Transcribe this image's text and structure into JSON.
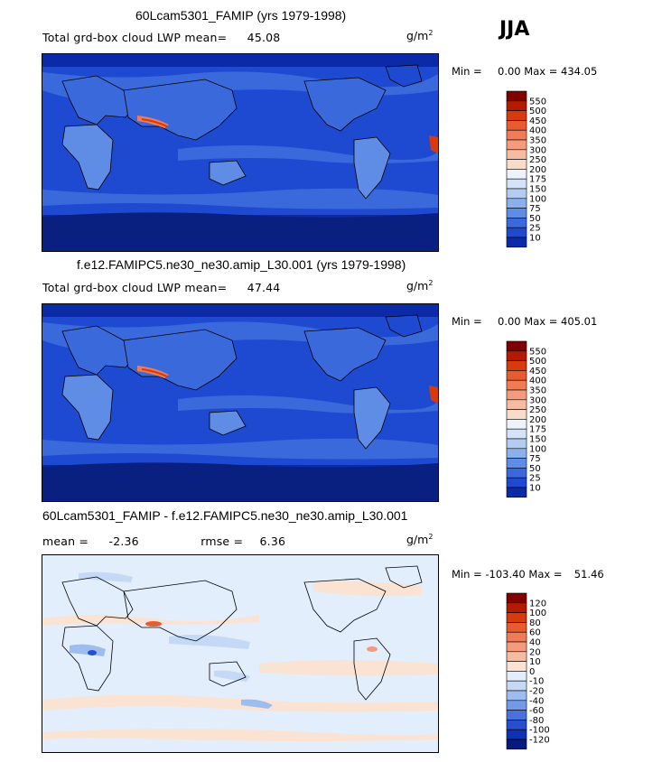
{
  "season": "JJA",
  "units_base": "g/m",
  "units_exp": "2",
  "panels": [
    {
      "title": "60Lcam5301_FAMIP (yrs 1979-1998)",
      "variable": "Total grd-box cloud LWP",
      "mean_label": "mean=",
      "mean_value": "45.08",
      "min_label": "Min =",
      "min_value": "0.00",
      "max_label": "Max =",
      "max_value": "434.05",
      "colorbar": {
        "levels": [
          "550",
          "500",
          "450",
          "400",
          "350",
          "300",
          "250",
          "200",
          "175",
          "150",
          "100",
          "75",
          "50",
          "25",
          "10"
        ],
        "colors": [
          "#800000",
          "#b31a00",
          "#d63a0d",
          "#e85a30",
          "#f07b55",
          "#f49b7c",
          "#f7bba2",
          "#f8dcca",
          "#eef3fb",
          "#d4e3f8",
          "#b4ccf2",
          "#8bb0ec",
          "#5f8ce4",
          "#3a69dc",
          "#1d4ad1",
          "#0a2aa8"
        ]
      }
    },
    {
      "title": "f.e12.FAMIPC5.ne30_ne30.amip_L30.001 (yrs 1979-1998)",
      "variable": "Total grd-box cloud LWP",
      "mean_label": "mean=",
      "mean_value": "47.44",
      "min_label": "Min =",
      "min_value": "0.00",
      "max_label": "Max =",
      "max_value": "405.01",
      "colorbar": {
        "levels": [
          "550",
          "500",
          "450",
          "400",
          "350",
          "300",
          "250",
          "200",
          "175",
          "150",
          "100",
          "75",
          "50",
          "25",
          "10"
        ],
        "colors": [
          "#800000",
          "#b31a00",
          "#d63a0d",
          "#e85a30",
          "#f07b55",
          "#f49b7c",
          "#f7bba2",
          "#f8dcca",
          "#eef3fb",
          "#d4e3f8",
          "#b4ccf2",
          "#8bb0ec",
          "#5f8ce4",
          "#3a69dc",
          "#1d4ad1",
          "#0a2aa8"
        ]
      }
    },
    {
      "title": "60Lcam5301_FAMIP - f.e12.FAMIPC5.ne30_ne30.amip_L30.001",
      "mean_label": "mean =",
      "mean_value": "-2.36",
      "rmse_label": "rmse =",
      "rmse_value": "6.36",
      "min_label": "Min =",
      "min_value": "-103.40",
      "max_label": "Max =",
      "max_value": "51.46",
      "colorbar": {
        "levels": [
          "120",
          "100",
          "80",
          "60",
          "40",
          "20",
          "10",
          "0",
          "-10",
          "-20",
          "-40",
          "-60",
          "-80",
          "-100",
          "-120"
        ],
        "colors": [
          "#800000",
          "#b31a00",
          "#d63a0d",
          "#e85a30",
          "#f07b55",
          "#f49b7c",
          "#f7bba2",
          "#fbe3d4",
          "#e2eefc",
          "#c4d9f6",
          "#9dbdee",
          "#7499e6",
          "#4a72dc",
          "#2650cf",
          "#0f32b4",
          "#061a80"
        ]
      }
    }
  ],
  "chart_data": [
    {
      "type": "heatmap",
      "title": "60Lcam5301_FAMIP (yrs 1979-1998)",
      "subtitle": "Total grd-box cloud LWP",
      "units": "g/m^2",
      "season": "JJA",
      "mean": 45.08,
      "min": 0.0,
      "max": 434.05,
      "contour_levels": [
        10,
        25,
        50,
        75,
        100,
        150,
        175,
        200,
        250,
        300,
        350,
        400,
        450,
        500,
        550
      ],
      "colorbar_placement": "right"
    },
    {
      "type": "heatmap",
      "title": "f.e12.FAMIPC5.ne30_ne30.amip_L30.001 (yrs 1979-1998)",
      "subtitle": "Total grd-box cloud LWP",
      "units": "g/m^2",
      "season": "JJA",
      "mean": 47.44,
      "min": 0.0,
      "max": 405.01,
      "contour_levels": [
        10,
        25,
        50,
        75,
        100,
        150,
        175,
        200,
        250,
        300,
        350,
        400,
        450,
        500,
        550
      ],
      "colorbar_placement": "right"
    },
    {
      "type": "heatmap",
      "title": "60Lcam5301_FAMIP - f.e12.FAMIPC5.ne30_ne30.amip_L30.001",
      "units": "g/m^2",
      "season": "JJA",
      "mean": -2.36,
      "rmse": 6.36,
      "min": -103.4,
      "max": 51.46,
      "contour_levels": [
        -120,
        -100,
        -80,
        -60,
        -40,
        -20,
        -10,
        0,
        10,
        20,
        40,
        60,
        80,
        100,
        120
      ],
      "colorbar_placement": "right"
    }
  ]
}
